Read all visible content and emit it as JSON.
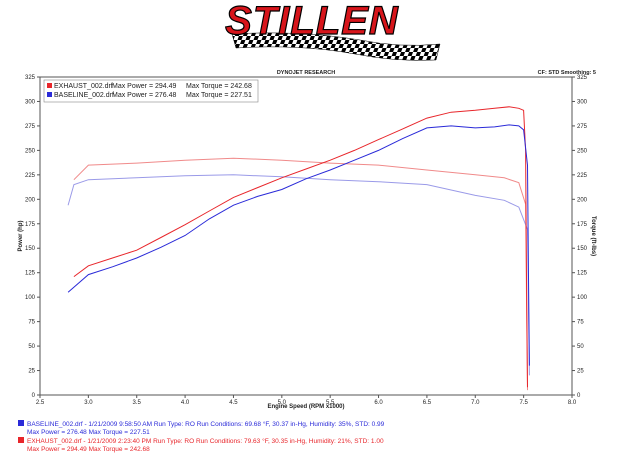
{
  "logo": "STILLEN",
  "header": {
    "center": "DYNOJET RESEARCH",
    "right": "CF: STD  Smoothing: 5"
  },
  "chart_data": {
    "type": "line",
    "xlabel": "Engine Speed (RPM x1000)",
    "ylabel": "Power (hp)",
    "y2label": "Torque (ft-lbs)",
    "xlim": [
      2.5,
      8.0
    ],
    "xticks": [
      {
        "value": 2.5,
        "label": "2.5"
      },
      {
        "value": 3,
        "label": "3.0"
      },
      {
        "value": 3.5,
        "label": "3.5"
      },
      {
        "value": 4,
        "label": "4.0"
      },
      {
        "value": 4.5,
        "label": "4.5"
      },
      {
        "value": 5,
        "label": "5.0"
      },
      {
        "value": 5.5,
        "label": "5.5"
      },
      {
        "value": 6,
        "label": "6.0"
      },
      {
        "value": 6.5,
        "label": "6.5"
      },
      {
        "value": 7,
        "label": "7.0"
      },
      {
        "value": 7.5,
        "label": "7.5"
      },
      {
        "value": 8,
        "label": "8.0"
      }
    ],
    "ylim": [
      0,
      325
    ],
    "yticks": [
      0,
      25,
      50,
      75,
      100,
      125,
      150,
      175,
      200,
      225,
      250,
      275,
      300,
      325
    ],
    "y2lim": [
      0,
      325
    ],
    "y2ticks": [
      0,
      25,
      50,
      75,
      100,
      125,
      150,
      175,
      200,
      225,
      250,
      275,
      300,
      325
    ],
    "series": [
      {
        "color": "#f08a8a",
        "axis": "y2",
        "x": [
          2.85,
          3.0,
          3.5,
          4.0,
          4.5,
          5.0,
          5.5,
          6.0,
          6.5,
          7.0,
          7.3,
          7.45,
          7.52,
          7.53,
          7.54
        ],
        "values": [
          220,
          235,
          237,
          240,
          242,
          240,
          237,
          235,
          230,
          225,
          222,
          217,
          195,
          100,
          5
        ]
      },
      {
        "color": "#9a9ae8",
        "axis": "y2",
        "x": [
          2.79,
          2.85,
          3.0,
          3.5,
          4.0,
          4.5,
          5.0,
          5.5,
          6.0,
          6.5,
          7.0,
          7.3,
          7.45,
          7.54,
          7.55,
          7.56
        ],
        "values": [
          194,
          215,
          220,
          222,
          224,
          225,
          223,
          220,
          218,
          215,
          204,
          199,
          192,
          169,
          90,
          20
        ]
      },
      {
        "name": "EXHAUST_002.drf",
        "color": "#e8262b",
        "x": [
          2.85,
          3.0,
          3.25,
          3.5,
          3.75,
          4.0,
          4.25,
          4.5,
          4.75,
          5.0,
          5.25,
          5.5,
          5.75,
          6.0,
          6.25,
          6.5,
          6.75,
          7.0,
          7.2,
          7.35,
          7.45,
          7.5,
          7.52,
          7.53,
          7.54
        ],
        "values": [
          121,
          132,
          140,
          148,
          161,
          174,
          188,
          202,
          212,
          222,
          231,
          240,
          250,
          261,
          272,
          283,
          289,
          291,
          293,
          294.5,
          293,
          291,
          250,
          120,
          8
        ]
      },
      {
        "name": "BASELINE_002.drf",
        "color": "#2a2ad8",
        "x": [
          2.79,
          3.0,
          3.25,
          3.5,
          3.75,
          4.0,
          4.25,
          4.5,
          4.75,
          5.0,
          5.25,
          5.5,
          5.75,
          6.0,
          6.25,
          6.5,
          6.75,
          7.0,
          7.2,
          7.35,
          7.45,
          7.5,
          7.54,
          7.55,
          7.56
        ],
        "values": [
          105,
          123,
          131,
          140,
          151,
          163,
          180,
          194,
          203,
          210,
          221,
          230,
          240,
          250,
          262,
          273,
          275,
          273,
          274,
          276,
          275,
          271,
          235,
          120,
          30
        ]
      }
    ],
    "legend": [
      {
        "series": 2,
        "max_power": "Max Power = 294.49",
        "max_torque": "Max Torque = 242.68"
      },
      {
        "series": 3,
        "max_power": "Max Power = 276.48",
        "max_torque": "Max Torque = 227.51"
      }
    ]
  },
  "footer": [
    {
      "color": "#2a2ad8",
      "line1": "BASELINE_002.drf - 1/21/2009 9:58:50 AM   Run Type: RO   Run Conditions: 69.68 °F, 30.37 in-Hg,  Humidity:  35%, STD: 0.99",
      "line2": "Max Power = 276.48   Max Torque = 227.51"
    },
    {
      "color": "#e8262b",
      "line1": "EXHAUST_002.drf - 1/21/2009 2:23:40 PM   Run Type: RO   Run Conditions: 79.63 °F, 30.35 in-Hg,  Humidity:  21%, STD: 1.00",
      "line2": "Max Power = 294.49   Max Torque = 242.68"
    }
  ]
}
